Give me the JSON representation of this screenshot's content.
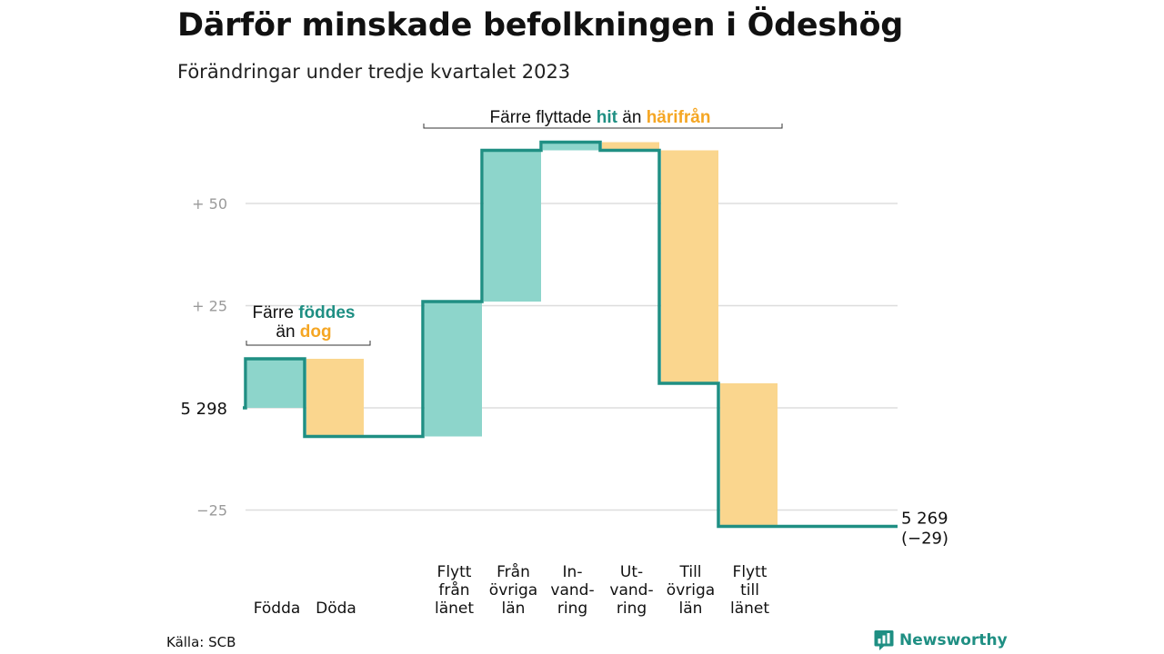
{
  "header": {
    "title": "Därför minskade befolkningen i Ödeshög",
    "subtitle": "Förändringar under tredje kvartalet 2023"
  },
  "footer": {
    "source": "Källa: SCB",
    "brand": "Newsworthy",
    "brand_icon": "bar-chart-speech-bubble-icon"
  },
  "colors": {
    "increase": "#8dd5cb",
    "decrease": "#fad68e",
    "line": "#1f8f83",
    "hit": "#1f8f83",
    "harifran": "#f5a623",
    "grid": "#dddddd",
    "tick": "#9a9a9a"
  },
  "annotations": {
    "births": {
      "pre": "Färre ",
      "hit": "föddes",
      "line2_pre": "än ",
      "from": "dog"
    },
    "moves": {
      "pre": "Färre flyttade ",
      "hit": "hit",
      "mid": " än ",
      "from": "härifrån"
    }
  },
  "chart_data": {
    "type": "waterfall",
    "title": "Därför minskade befolkningen i Ödeshög",
    "subtitle": "Förändringar under tredje kvartalet 2023",
    "start_value": 5298,
    "end_value": 5269,
    "end_change": -29,
    "start_label": "5 298",
    "end_label": "5 269",
    "end_change_label": "(−29)",
    "y_ticks": [
      {
        "value": 50,
        "label": "+ 50"
      },
      {
        "value": 25,
        "label": "+ 25"
      },
      {
        "value": -25,
        "label": "−25"
      }
    ],
    "ylim": [
      -30,
      66
    ],
    "grid": true,
    "steps": [
      {
        "category": "Födda",
        "lines": [
          "Födda"
        ],
        "change": 12,
        "kind": "increase",
        "group": "births"
      },
      {
        "category": "Döda",
        "lines": [
          "Döda"
        ],
        "change": -19,
        "kind": "decrease",
        "group": "births"
      },
      {
        "category": "Flytt från länet",
        "lines": [
          "Flytt",
          "från",
          "länet"
        ],
        "change": 33,
        "kind": "increase",
        "group": "moves"
      },
      {
        "category": "Från övriga län",
        "lines": [
          "Från",
          "övriga",
          "län"
        ],
        "change": 37,
        "kind": "increase",
        "group": "moves"
      },
      {
        "category": "Invandring",
        "lines": [
          "In-",
          "vand-",
          "ring"
        ],
        "change": 2,
        "kind": "increase",
        "group": "moves"
      },
      {
        "category": "Utvandring",
        "lines": [
          "Ut-",
          "vand-",
          "ring"
        ],
        "change": -2,
        "kind": "decrease",
        "group": "moves"
      },
      {
        "category": "Till övriga län",
        "lines": [
          "Till",
          "övriga",
          "län"
        ],
        "change": -57,
        "kind": "decrease",
        "group": "moves"
      },
      {
        "category": "Flytt till länet",
        "lines": [
          "Flytt",
          "till",
          "länet"
        ],
        "change": -35,
        "kind": "decrease",
        "group": "moves"
      }
    ]
  }
}
